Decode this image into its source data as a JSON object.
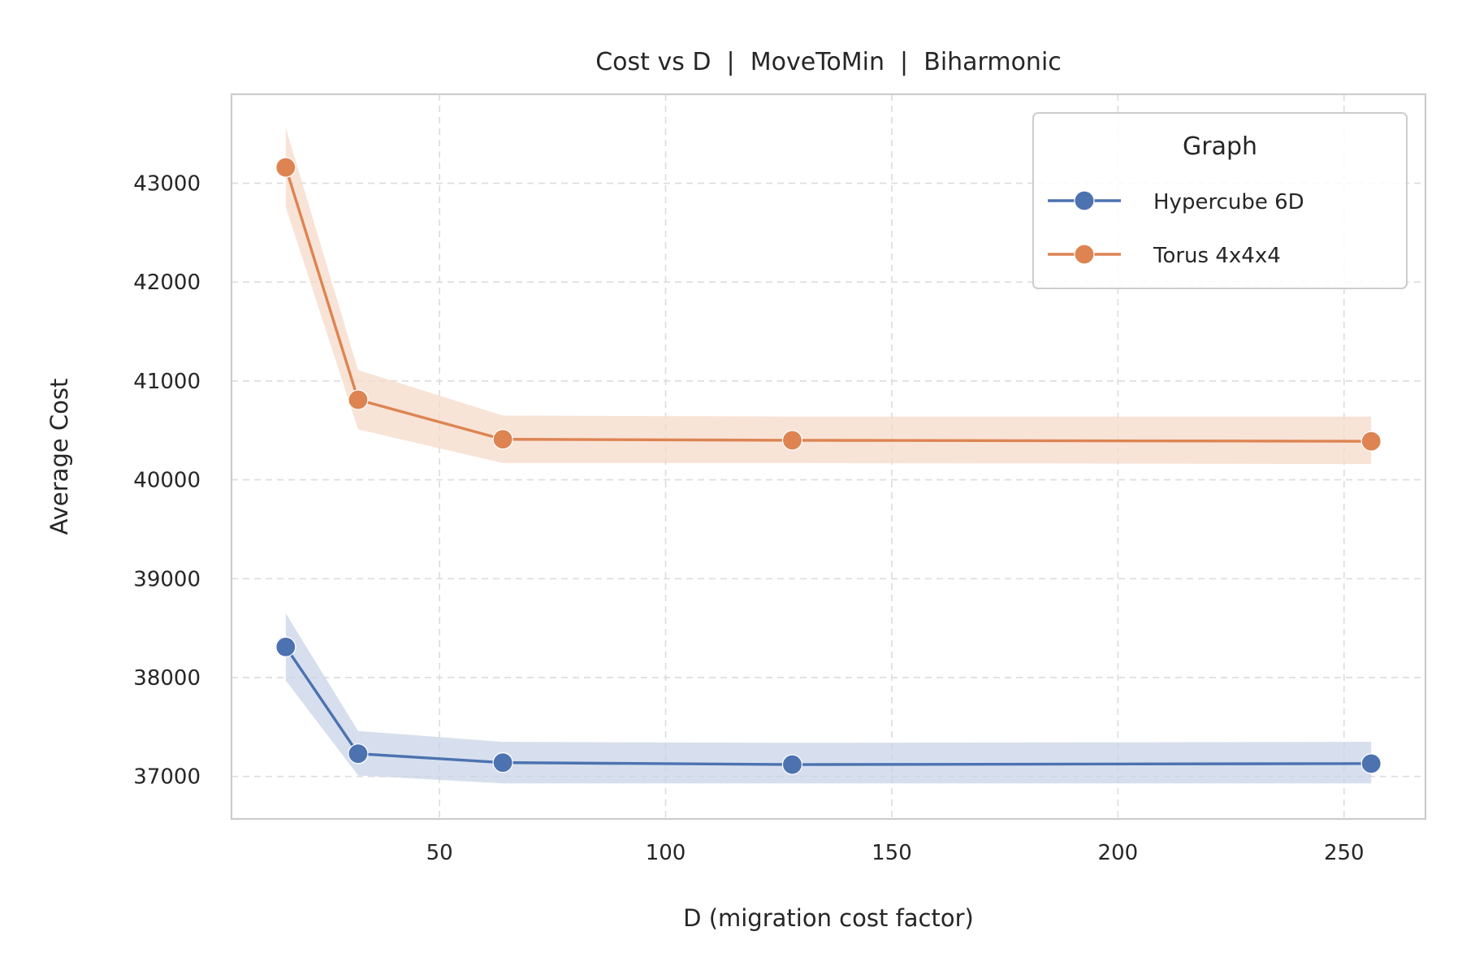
{
  "chart_data": {
    "type": "line",
    "title": "Cost vs D  |  MoveToMin  |  Biharmonic",
    "xlabel": "D (migration cost factor)",
    "ylabel": "Average Cost",
    "xlim": [
      4,
      268
    ],
    "ylim": [
      36570,
      43900
    ],
    "xticks": [
      50,
      100,
      150,
      200,
      250
    ],
    "yticks": [
      37000,
      38000,
      39000,
      40000,
      41000,
      42000,
      43000
    ],
    "grid": true,
    "legend": {
      "title": "Graph",
      "placement": "top-right"
    },
    "series": [
      {
        "name": "Hypercube 6D",
        "color": "#4c72b0",
        "band_color": "#c9d4e8",
        "x": [
          16,
          32,
          64,
          128,
          256
        ],
        "values": [
          38310,
          37230,
          37140,
          37120,
          37130
        ],
        "lower": [
          37970,
          37010,
          36930,
          36930,
          36930
        ],
        "upper": [
          38650,
          37460,
          37350,
          37340,
          37350
        ]
      },
      {
        "name": "Torus 4x4x4",
        "color": "#dd8452",
        "band_color": "#f6d9c9",
        "x": [
          16,
          32,
          64,
          128,
          256
        ],
        "values": [
          43160,
          40810,
          40410,
          40400,
          40390
        ],
        "lower": [
          42760,
          40510,
          40170,
          40170,
          40160
        ],
        "upper": [
          43560,
          41110,
          40650,
          40640,
          40640
        ]
      }
    ]
  }
}
